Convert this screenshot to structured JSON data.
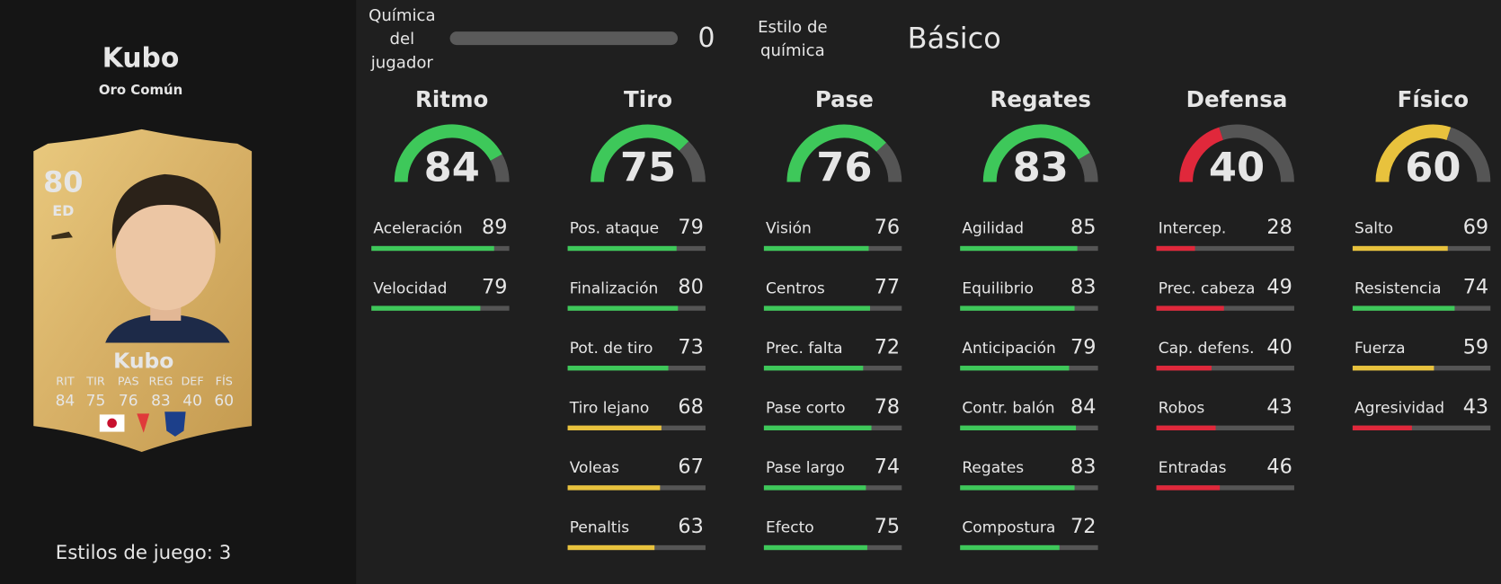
{
  "player": {
    "name": "Kubo",
    "rarity": "Oro Común",
    "playstyles": "Estilos de juego: 3",
    "card": {
      "rating": 80,
      "position": "ED",
      "name": "Kubo",
      "stat_labels": [
        "RIT",
        "TIR",
        "PAS",
        "REG",
        "DEF",
        "FÍS"
      ],
      "stat_values": [
        84,
        75,
        76,
        83,
        40,
        60
      ]
    }
  },
  "chemistry": {
    "label": [
      "Química",
      "del",
      "jugador"
    ],
    "value": 0,
    "style_label": [
      "Estilo de",
      "química"
    ],
    "style": "Básico"
  },
  "categories": [
    {
      "name": "Ritmo",
      "value": 84,
      "stats": [
        {
          "name": "Aceleración",
          "value": 89
        },
        {
          "name": "Velocidad",
          "value": 79
        }
      ]
    },
    {
      "name": "Tiro",
      "value": 75,
      "stats": [
        {
          "name": "Pos. ataque",
          "value": 79
        },
        {
          "name": "Finalización",
          "value": 80
        },
        {
          "name": "Pot. de tiro",
          "value": 73
        },
        {
          "name": "Tiro lejano",
          "value": 68
        },
        {
          "name": "Voleas",
          "value": 67
        },
        {
          "name": "Penaltis",
          "value": 63
        }
      ]
    },
    {
      "name": "Pase",
      "value": 76,
      "stats": [
        {
          "name": "Visión",
          "value": 76
        },
        {
          "name": "Centros",
          "value": 77
        },
        {
          "name": "Prec. falta",
          "value": 72
        },
        {
          "name": "Pase corto",
          "value": 78
        },
        {
          "name": "Pase largo",
          "value": 74
        },
        {
          "name": "Efecto",
          "value": 75
        }
      ]
    },
    {
      "name": "Regates",
      "value": 83,
      "stats": [
        {
          "name": "Agilidad",
          "value": 85
        },
        {
          "name": "Equilibrio",
          "value": 83
        },
        {
          "name": "Anticipación",
          "value": 79
        },
        {
          "name": "Contr. balón",
          "value": 84
        },
        {
          "name": "Regates",
          "value": 83
        },
        {
          "name": "Compostura",
          "value": 72
        }
      ]
    },
    {
      "name": "Defensa",
      "value": 40,
      "stats": [
        {
          "name": "Intercep.",
          "value": 28
        },
        {
          "name": "Prec. cabeza",
          "value": 49
        },
        {
          "name": "Cap. defens.",
          "value": 40
        },
        {
          "name": "Robos",
          "value": 43
        },
        {
          "name": "Entradas",
          "value": 46
        }
      ]
    },
    {
      "name": "Físico",
      "value": 60,
      "stats": [
        {
          "name": "Salto",
          "value": 69
        },
        {
          "name": "Resistencia",
          "value": 74
        },
        {
          "name": "Fuerza",
          "value": 59
        },
        {
          "name": "Agresividad",
          "value": 43
        }
      ]
    }
  ]
}
